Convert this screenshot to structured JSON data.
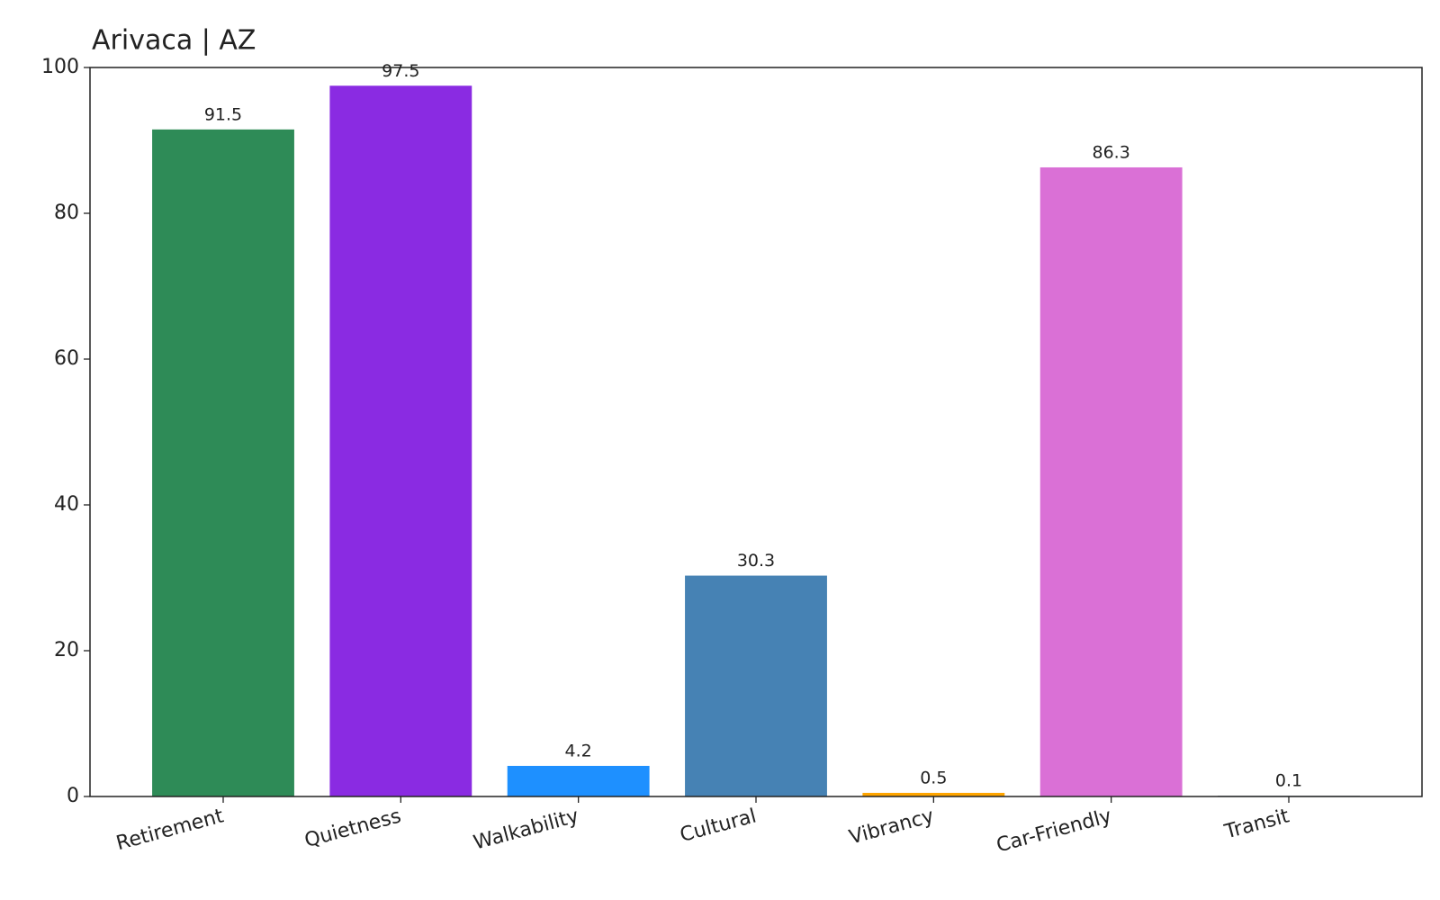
{
  "chart_data": {
    "type": "bar",
    "title": "Arivaca | AZ",
    "categories": [
      "Retirement",
      "Quietness",
      "Walkability",
      "Cultural",
      "Vibrancy",
      "Car-Friendly",
      "Transit"
    ],
    "values": [
      91.5,
      97.5,
      4.2,
      30.3,
      0.5,
      86.3,
      0.1
    ],
    "colors": [
      "#2e8b57",
      "#8a2be2",
      "#1e90ff",
      "#4682b4",
      "#ffa500",
      "#da70d6",
      "#708090"
    ],
    "ylim": [
      0,
      100
    ],
    "yticks": [
      0,
      20,
      40,
      60,
      80,
      100
    ],
    "grid": false
  }
}
